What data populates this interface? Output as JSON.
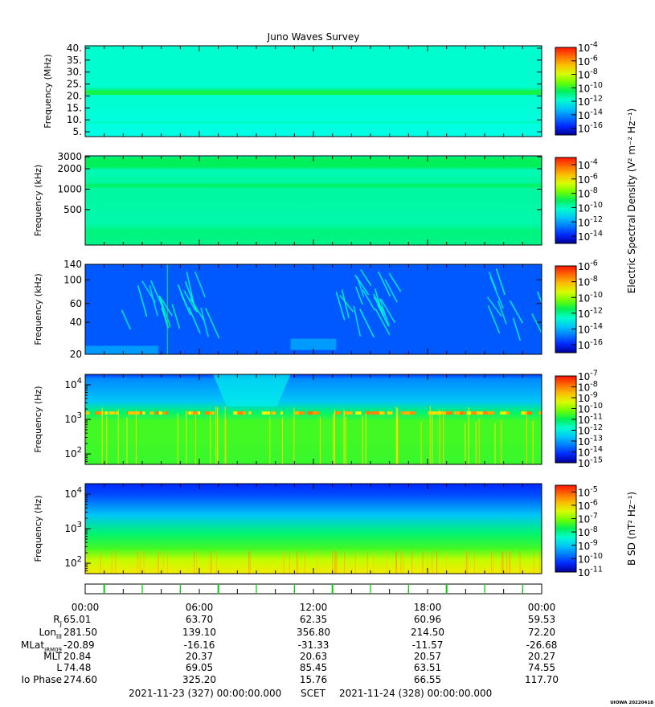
{
  "chart_data": {
    "type": "heatmap",
    "title": "Juno Waves Survey",
    "panels": [
      {
        "id": "p1",
        "ylabel": "Frequency (MHz)",
        "y_scale": "linear",
        "ylim": [
          3,
          41
        ],
        "yticks": [
          5,
          10,
          15,
          20,
          25,
          30,
          35,
          40
        ],
        "ytick_labels": [
          "5.",
          "10.",
          "15.",
          "20.",
          "25.",
          "30.",
          "35.",
          "40."
        ],
        "colorbar_labels": [
          "10-4",
          "10-6",
          "10-8",
          "10-10",
          "10-12",
          "10-14",
          "10-16"
        ],
        "colorbar_exp": [
          -4,
          -6,
          -8,
          -10,
          -12,
          -14,
          -16
        ],
        "colorbar_range": [
          -17,
          -4
        ]
      },
      {
        "id": "p2",
        "ylabel": "Frequency (kHz)",
        "y_scale": "log",
        "ylim": [
          150,
          3100
        ],
        "yticks": [
          500,
          1000,
          2000,
          3000
        ],
        "ytick_labels": [
          "500",
          "1000",
          "2000",
          "3000"
        ],
        "colorbar_labels": [
          "10-4",
          "10-6",
          "10-8",
          "10-10",
          "10-12",
          "10-14"
        ],
        "colorbar_exp": [
          -4,
          -6,
          -8,
          -10,
          -12,
          -14
        ],
        "colorbar_range": [
          -15,
          -3
        ]
      },
      {
        "id": "p3",
        "ylabel": "Frequency (kHz)",
        "y_scale": "log",
        "ylim": [
          20,
          140
        ],
        "yticks": [
          20,
          40,
          60,
          100,
          140
        ],
        "ytick_labels": [
          "20",
          "40",
          "60",
          "100",
          "140"
        ],
        "colorbar_labels": [
          "10-6",
          "10-8",
          "10-10",
          "10-12",
          "10-14",
          "10-16"
        ],
        "colorbar_exp": [
          -6,
          -8,
          -10,
          -12,
          -14,
          -16
        ],
        "colorbar_range": [
          -17,
          -6
        ]
      },
      {
        "id": "p4",
        "ylabel": "Frequency (Hz)",
        "y_scale": "log",
        "ylim": [
          50,
          20000
        ],
        "ytick_exp": [
          2,
          3,
          4
        ],
        "colorbar_labels": [
          "10-7",
          "10-8",
          "10-9",
          "10-10",
          "10-11",
          "10-12",
          "10-13",
          "10-14",
          "10-15"
        ],
        "colorbar_exp": [
          -7,
          -8,
          -9,
          -10,
          -11,
          -12,
          -13,
          -14,
          -15
        ],
        "colorbar_range": [
          -15,
          -7
        ]
      },
      {
        "id": "p5",
        "ylabel": "Frequency (Hz)",
        "y_scale": "log",
        "ylim": [
          50,
          20000
        ],
        "ytick_exp": [
          2,
          3,
          4
        ],
        "colorbar_labels": [
          "10-5",
          "10-6",
          "10-7",
          "10-8",
          "10-9",
          "10-10",
          "10-11"
        ],
        "colorbar_exp": [
          -5,
          -6,
          -7,
          -8,
          -9,
          -10,
          -11
        ],
        "colorbar_range": [
          -11,
          -4.5
        ]
      }
    ],
    "colorbar_title_electric": "Electric Spectral Density (V² m⁻² Hz⁻¹)",
    "colorbar_title_magnetic": "B SD (nT² Hz⁻¹)",
    "x_axis": {
      "tick_labels": [
        "00:00",
        "06:00",
        "12:00",
        "18:00",
        "00:00"
      ],
      "hours": [
        0,
        6,
        12,
        18,
        24
      ]
    },
    "ephemeris": {
      "rows": [
        {
          "label": "RJ",
          "values": [
            "65.01",
            "63.70",
            "62.35",
            "60.96",
            "59.53"
          ]
        },
        {
          "label": "LonIII",
          "values": [
            "281.50",
            "139.10",
            "356.80",
            "214.50",
            "72.20"
          ]
        },
        {
          "label": "MLatJRM09",
          "values": [
            "-20.89",
            "-16.16",
            "-31.33",
            "-11.57",
            "-26.68"
          ]
        },
        {
          "label": "MLT",
          "values": [
            "20.84",
            "20.37",
            "20.63",
            "20.57",
            "20.27"
          ]
        },
        {
          "label": "L",
          "values": [
            "74.48",
            "69.05",
            "85.45",
            "63.51",
            "74.55"
          ]
        },
        {
          "label": "Io Phase",
          "values": [
            "274.60",
            "325.20",
            "15.76",
            "66.55",
            "117.70"
          ]
        }
      ]
    },
    "time_range": {
      "start": "2021-11-23 (327) 00:00:00.000",
      "scet": "SCET",
      "end": "2021-11-24 (328) 00:00:00.000"
    },
    "footer_tag": "UIOWA 20220418"
  }
}
